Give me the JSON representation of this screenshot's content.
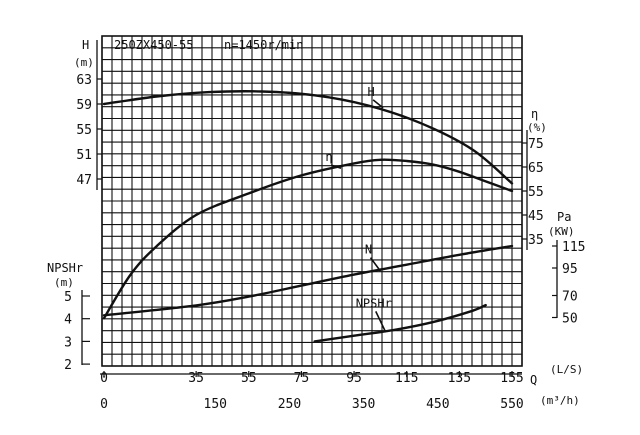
{
  "chart_data": {
    "type": "line",
    "title": "250ZX450-55",
    "subtitle": "n=1450r/min",
    "grid": true,
    "colors": {
      "ink": "#111111",
      "background": "#ffffff"
    },
    "x_axis": {
      "primary": {
        "label": "Q",
        "unit": "(L/S)",
        "range": [
          0,
          155
        ],
        "ticks": [
          "0",
          "35",
          "55",
          "75",
          "95",
          "115",
          "135",
          "155"
        ],
        "tick_values": [
          0,
          35,
          55,
          75,
          95,
          115,
          135,
          155
        ]
      },
      "secondary": {
        "unit": "(m³/h)",
        "ticks": [
          "0",
          "150",
          "250",
          "350",
          "450",
          "550"
        ],
        "tick_values": [
          0,
          150,
          250,
          350,
          450,
          550
        ]
      }
    },
    "y_axes": {
      "head": {
        "label": "H",
        "unit": "(m)",
        "ticks": [
          "63",
          "59",
          "55",
          "51",
          "47"
        ],
        "tick_values": [
          63,
          59,
          55,
          51,
          47
        ]
      },
      "efficiency": {
        "label": "η",
        "unit": "(%)",
        "ticks": [
          "75",
          "65",
          "55",
          "45",
          "35"
        ],
        "tick_values": [
          75,
          65,
          55,
          45,
          35
        ]
      },
      "power": {
        "label": "Pa",
        "unit": "(KW)",
        "ticks": [
          "115",
          "95",
          "70",
          "50"
        ],
        "tick_values": [
          115,
          95,
          70,
          50
        ]
      },
      "npshr": {
        "label": "NPSHr",
        "unit": "(m)",
        "ticks": [
          "5",
          "4",
          "3",
          "2"
        ],
        "tick_values": [
          5,
          4,
          3,
          2
        ]
      }
    },
    "series": [
      {
        "name": "H",
        "axis": "head",
        "x": [
          0,
          20,
          40,
          60,
          80,
          100,
          120,
          140,
          155
        ],
        "y": [
          59,
          60.2,
          60.9,
          61.0,
          60.4,
          58.8,
          56.0,
          51.7,
          46.3
        ],
        "label_at": {
          "x": 103,
          "y": 60.3
        }
      },
      {
        "name": "η",
        "axis": "efficiency",
        "x": [
          0,
          10,
          20,
          35,
          55,
          75,
          95,
          105,
          115,
          125,
          135,
          145,
          155
        ],
        "y": [
          2,
          20,
          32,
          45,
          54,
          61.5,
          66.5,
          68,
          67.5,
          66,
          63,
          59,
          55
        ],
        "label_at": {
          "x": 87,
          "y": 67.5
        }
      },
      {
        "name": "N",
        "axis": "power",
        "x": [
          0,
          35,
          55,
          75,
          95,
          115,
          135,
          155
        ],
        "y": [
          52,
          61,
          69,
          79,
          89,
          98,
          107,
          115
        ],
        "label_at": {
          "x": 102,
          "y": 108
        }
      },
      {
        "name": "NPSHr",
        "axis": "npshr",
        "x": [
          80,
          95,
          110,
          125,
          140,
          145
        ],
        "y": [
          3.0,
          3.25,
          3.5,
          3.85,
          4.35,
          4.6
        ],
        "label_at": {
          "x": 104,
          "y": 4.5
        }
      }
    ]
  }
}
